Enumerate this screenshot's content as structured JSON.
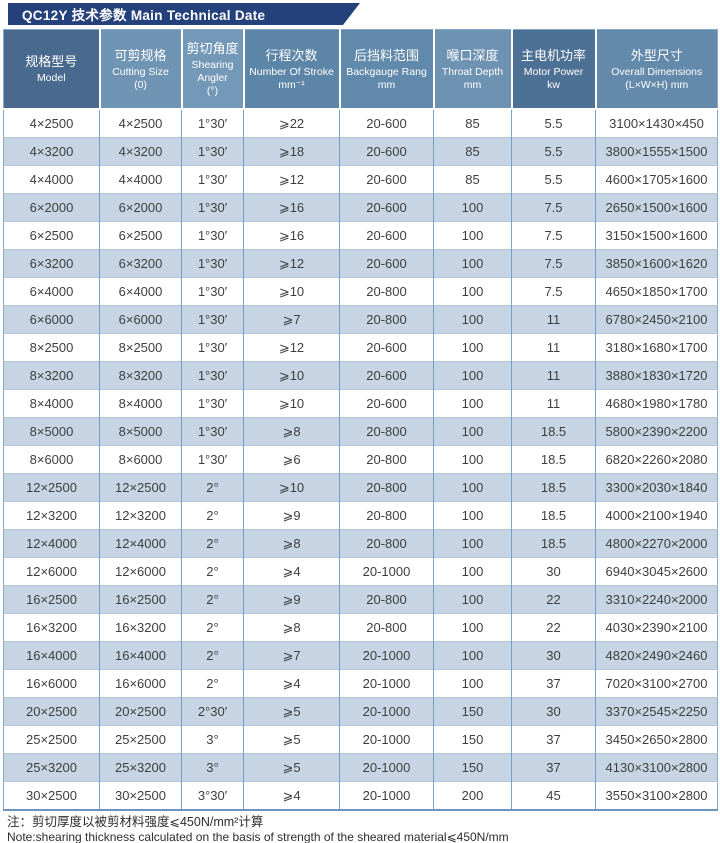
{
  "title": "QC12Y 技术参数 Main Technical Date",
  "columns": [
    {
      "zh": "规格型号",
      "en": "Model",
      "unit": ""
    },
    {
      "zh": "可剪规格",
      "en": "Cutting Size",
      "unit": "(0)"
    },
    {
      "zh": "剪切角度",
      "en": "Shearing Angler",
      "unit": "(°)"
    },
    {
      "zh": "行程次数",
      "en": "Number Of Stroke",
      "unit": "mm⁻¹"
    },
    {
      "zh": "后挡料范围",
      "en": "Backgauge Rang",
      "unit": "mm"
    },
    {
      "zh": "喉口深度",
      "en": "Throat Depth",
      "unit": "mm"
    },
    {
      "zh": "主电机功率",
      "en": "Motor Power",
      "unit": "kw"
    },
    {
      "zh": "外型尺寸",
      "en": "Overall Dimensions",
      "unit": "(L×W×H) mm"
    }
  ],
  "rows": [
    [
      "4×2500",
      "4×2500",
      "1°30′",
      "⩾22",
      "20-600",
      "85",
      "5.5",
      "3100×1430×450"
    ],
    [
      "4×3200",
      "4×3200",
      "1°30′",
      "⩾18",
      "20-600",
      "85",
      "5.5",
      "3800×1555×1500"
    ],
    [
      "4×4000",
      "4×4000",
      "1°30′",
      "⩾12",
      "20-600",
      "85",
      "5.5",
      "4600×1705×1600"
    ],
    [
      "6×2000",
      "6×2000",
      "1°30′",
      "⩾16",
      "20-600",
      "100",
      "7.5",
      "2650×1500×1600"
    ],
    [
      "6×2500",
      "6×2500",
      "1°30′",
      "⩾16",
      "20-600",
      "100",
      "7.5",
      "3150×1500×1600"
    ],
    [
      "6×3200",
      "6×3200",
      "1°30′",
      "⩾12",
      "20-600",
      "100",
      "7.5",
      "3850×1600×1620"
    ],
    [
      "6×4000",
      "6×4000",
      "1°30′",
      "⩾10",
      "20-800",
      "100",
      "7.5",
      "4650×1850×1700"
    ],
    [
      "6×6000",
      "6×6000",
      "1°30′",
      "⩾7",
      "20-800",
      "100",
      "11",
      "6780×2450×2100"
    ],
    [
      "8×2500",
      "8×2500",
      "1°30′",
      "⩾12",
      "20-600",
      "100",
      "11",
      "3180×1680×1700"
    ],
    [
      "8×3200",
      "8×3200",
      "1°30′",
      "⩾10",
      "20-600",
      "100",
      "11",
      "3880×1830×1720"
    ],
    [
      "8×4000",
      "8×4000",
      "1°30′",
      "⩾10",
      "20-600",
      "100",
      "11",
      "4680×1980×1780"
    ],
    [
      "8×5000",
      "8×5000",
      "1°30′",
      "⩾8",
      "20-800",
      "100",
      "18.5",
      "5800×2390×2200"
    ],
    [
      "8×6000",
      "8×6000",
      "1°30′",
      "⩾6",
      "20-800",
      "100",
      "18.5",
      "6820×2260×2080"
    ],
    [
      "12×2500",
      "12×2500",
      "2°",
      "⩾10",
      "20-800",
      "100",
      "18.5",
      "3300×2030×1840"
    ],
    [
      "12×3200",
      "12×3200",
      "2°",
      "⩾9",
      "20-800",
      "100",
      "18.5",
      "4000×2100×1940"
    ],
    [
      "12×4000",
      "12×4000",
      "2°",
      "⩾8",
      "20-800",
      "100",
      "18.5",
      "4800×2270×2000"
    ],
    [
      "12×6000",
      "12×6000",
      "2°",
      "⩾4",
      "20-1000",
      "100",
      "30",
      "6940×3045×2600"
    ],
    [
      "16×2500",
      "16×2500",
      "2°",
      "⩾9",
      "20-800",
      "100",
      "22",
      "3310×2240×2000"
    ],
    [
      "16×3200",
      "16×3200",
      "2°",
      "⩾8",
      "20-800",
      "100",
      "22",
      "4030×2390×2100"
    ],
    [
      "16×4000",
      "16×4000",
      "2°",
      "⩾7",
      "20-1000",
      "100",
      "30",
      "4820×2490×2460"
    ],
    [
      "16×6000",
      "16×6000",
      "2°",
      "⩾4",
      "20-1000",
      "100",
      "37",
      "7020×3100×2700"
    ],
    [
      "20×2500",
      "20×2500",
      "2°30′",
      "⩾5",
      "20-1000",
      "150",
      "30",
      "3370×2545×2250"
    ],
    [
      "25×2500",
      "25×2500",
      "3°",
      "⩾5",
      "20-1000",
      "150",
      "37",
      "3450×2650×2800"
    ],
    [
      "25×3200",
      "25×3200",
      "3°",
      "⩾5",
      "20-1000",
      "150",
      "37",
      "4130×3100×2800"
    ],
    [
      "30×2500",
      "30×2500",
      "3°30′",
      "⩾4",
      "20-1000",
      "200",
      "45",
      "3550×3100×2800"
    ]
  ],
  "notes": {
    "zh": "注：剪切厚度以被剪材料强度⩽450N/mm²计算",
    "en": "Note:shearing thickness calculated on the basis of strength of the sheared material⩽450N/mm"
  },
  "colors": {
    "title_bg": "#24417c",
    "row_alt": "#c6d4e3",
    "grid_line": "#7aa0c4",
    "header_shades": [
      "#49698e",
      "#6f94b4",
      "#7398b8",
      "#5c85a8",
      "#6089ac",
      "#6d92b2",
      "#4d7095",
      "#6389ab"
    ]
  }
}
